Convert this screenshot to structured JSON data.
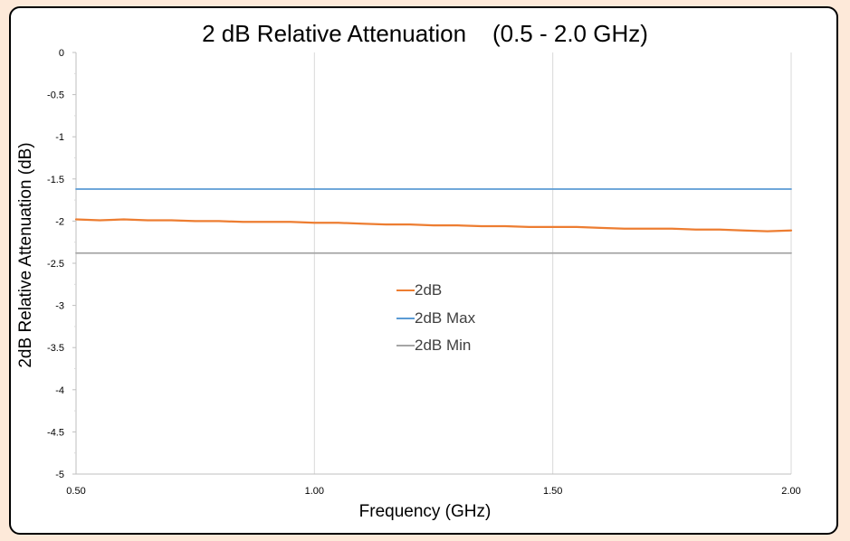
{
  "chart_data": {
    "type": "line",
    "title": "2 dB Relative Attenuation    (0.5 - 2.0 GHz)",
    "xlabel": "Frequency (GHz)",
    "ylabel": "2dB Relative Attenuation (dB)",
    "xlim": [
      0.5,
      2.0
    ],
    "ylim": [
      -5,
      0
    ],
    "x_ticks": [
      "0.50",
      "1.00",
      "1.50",
      "2.00"
    ],
    "y_ticks": [
      "0",
      "-0.5",
      "-1",
      "-1.5",
      "-2",
      "-2.5",
      "-3",
      "-3.5",
      "-4",
      "-4.5",
      "-5"
    ],
    "grid": "vertical",
    "legend_position": "center",
    "series": [
      {
        "name": "2dB",
        "color": "#ed7d31",
        "x": [
          0.5,
          0.55,
          0.6,
          0.65,
          0.7,
          0.75,
          0.8,
          0.85,
          0.9,
          0.95,
          1.0,
          1.05,
          1.1,
          1.15,
          1.2,
          1.25,
          1.3,
          1.35,
          1.4,
          1.45,
          1.5,
          1.55,
          1.6,
          1.65,
          1.7,
          1.75,
          1.8,
          1.85,
          1.9,
          1.95,
          2.0
        ],
        "y": [
          -1.98,
          -1.99,
          -1.98,
          -1.99,
          -1.99,
          -2.0,
          -2.0,
          -2.01,
          -2.01,
          -2.01,
          -2.02,
          -2.02,
          -2.03,
          -2.04,
          -2.04,
          -2.05,
          -2.05,
          -2.06,
          -2.06,
          -2.07,
          -2.07,
          -2.07,
          -2.08,
          -2.09,
          -2.09,
          -2.09,
          -2.1,
          -2.1,
          -2.11,
          -2.12,
          -2.11
        ]
      },
      {
        "name": "2dB Max",
        "color": "#5b9bd5",
        "x": [
          0.5,
          2.0
        ],
        "y": [
          -1.62,
          -1.62
        ]
      },
      {
        "name": "2dB Min",
        "color": "#a5a5a5",
        "x": [
          0.5,
          2.0
        ],
        "y": [
          -2.38,
          -2.38
        ]
      }
    ]
  }
}
